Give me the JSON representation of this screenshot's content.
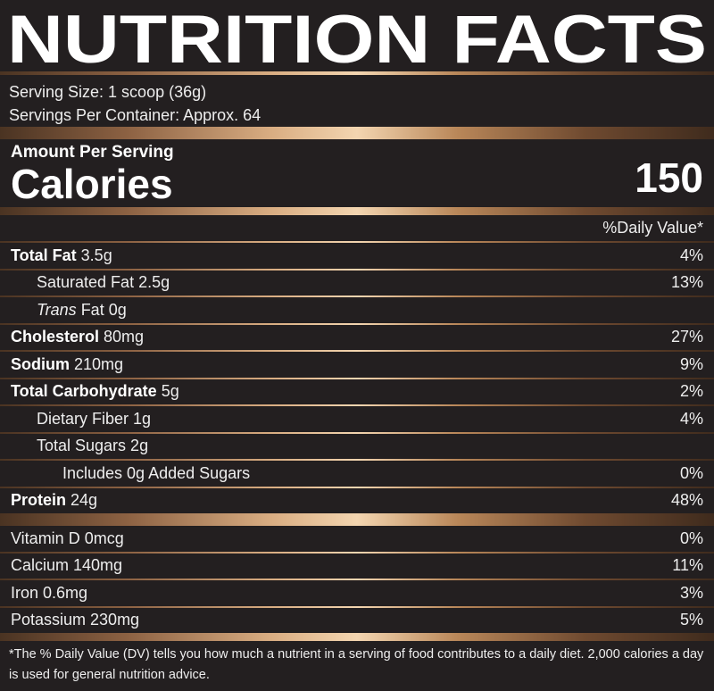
{
  "header": {
    "title": "NUTRITION FACTS"
  },
  "serving": {
    "size": "Serving Size: 1 scoop (36g)",
    "per_container": "Servings Per Container: Approx. 64"
  },
  "calories": {
    "heading": "Amount Per Serving",
    "label": "Calories",
    "value": "150"
  },
  "daily_value_heading": "%Daily Value*",
  "nutrients": [
    {
      "name_bold": "Total Fat",
      "name": "3.5g",
      "dv": "4%",
      "sub": [
        {
          "name": "Saturated Fat 2.5g",
          "dv": "13%"
        },
        {
          "name_italic": "Trans",
          "name": "Fat 0g"
        }
      ]
    },
    {
      "name_bold": "Cholesterol",
      "name": "80mg",
      "dv": "27%"
    },
    {
      "name_bold": "Sodium",
      "name": "210mg",
      "dv": "9%"
    },
    {
      "name_bold": "Total Carbohydrate",
      "name": "5g",
      "dv": "2%",
      "sub": [
        {
          "name": "Dietary Fiber 1g",
          "dv": "4%"
        },
        {
          "name": "Total Sugars 2g",
          "sub": [
            {
              "name": "Includes 0g Added Sugars",
              "dv": "0%"
            }
          ]
        }
      ]
    },
    {
      "name_bold": "Protein",
      "name": "24g",
      "dv": "48%"
    }
  ],
  "vitamins": [
    {
      "name": "Vitamin D 0mcg",
      "dv": "0%"
    },
    {
      "name": "Calcium 140mg",
      "dv": "11%"
    },
    {
      "name": "Iron 0.6mg",
      "dv": "3%"
    },
    {
      "name": "Potassium 230mg",
      "dv": "5%"
    }
  ],
  "footnote": "*The % Daily Value (DV) tells you how much a nutrient in a serving of food contributes to a daily diet. 2,000 calories a day is used for general nutrition advice."
}
